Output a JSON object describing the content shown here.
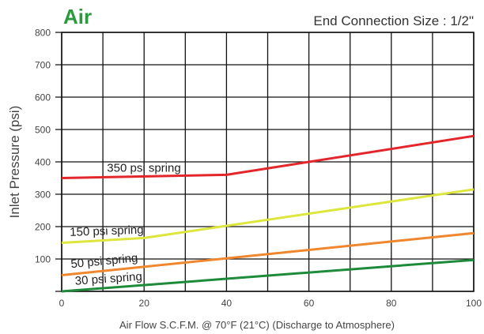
{
  "chart_data": {
    "type": "line",
    "title": "Air",
    "title_color": "#2a9a3c",
    "subtitle": "End Connection Size : 1/2\"",
    "xlabel": "Air Flow S.C.F.M. @ 70°F (21°C) (Discharge to Atmosphere)",
    "ylabel": "Inlet Pressure (psi)",
    "xlim": [
      0,
      100
    ],
    "ylim": [
      0,
      800
    ],
    "xticks": [
      0,
      20,
      40,
      60,
      80,
      100
    ],
    "yticks": [
      100,
      200,
      300,
      400,
      500,
      600,
      700,
      800
    ],
    "grid": true,
    "x_grid_step": 10,
    "y_grid_step": 100,
    "series": [
      {
        "name": "350 psi spring",
        "color": "#e2262b",
        "x": [
          0,
          40,
          100
        ],
        "y": [
          350,
          360,
          480
        ]
      },
      {
        "name": "150 psi spring",
        "color": "#dde63c",
        "x": [
          0,
          20,
          100
        ],
        "y": [
          150,
          165,
          315
        ]
      },
      {
        "name": "50 psi spring",
        "color": "#f0862d",
        "x": [
          0,
          100
        ],
        "y": [
          50,
          180
        ]
      },
      {
        "name": "30 psi spring",
        "color": "#1e8b3b",
        "x": [
          0,
          100
        ],
        "y": [
          0,
          97
        ]
      }
    ]
  }
}
